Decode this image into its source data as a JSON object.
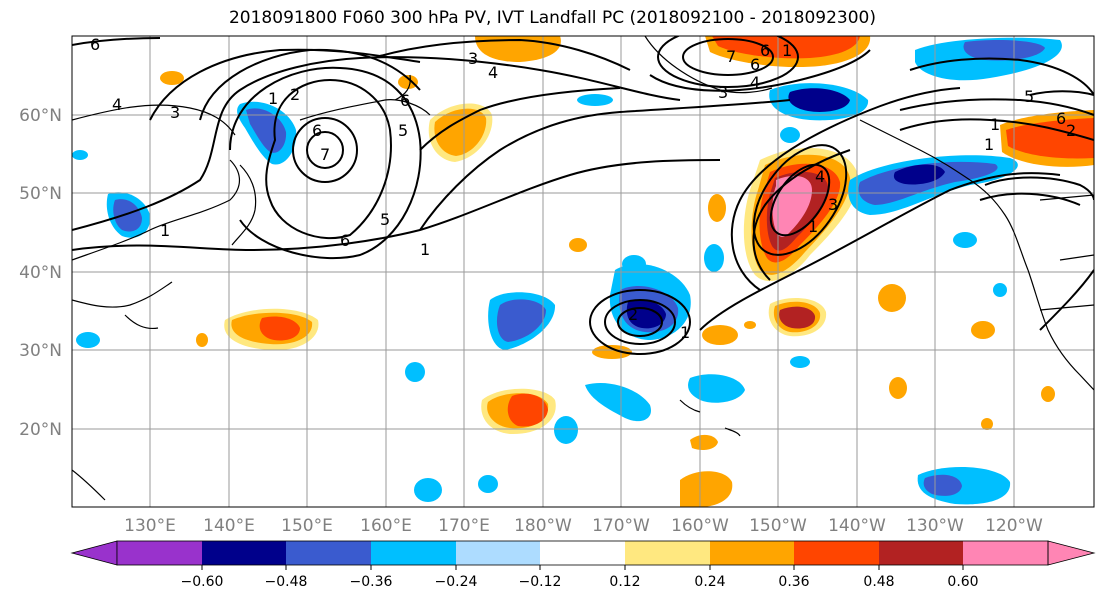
{
  "title": "2018091800 F060 300 hPa PV, IVT Landfall PC (2018092100 - 2018092300)",
  "lat_labels": [
    "60°N",
    "50°N",
    "40°N",
    "30°N",
    "20°N"
  ],
  "lon_labels": [
    "130°E",
    "140°E",
    "150°E",
    "160°E",
    "170°E",
    "180°W",
    "170°W",
    "160°W",
    "150°W",
    "140°W",
    "130°W",
    "120°W"
  ],
  "colorbar": {
    "colors": [
      "#9932CC",
      "#00008B",
      "#3A5BCF",
      "#00BFFF",
      "#ADDCFF",
      "#FFFFFF",
      "#FFE880",
      "#FFA500",
      "#FF4500",
      "#B22222",
      "#FF85B4"
    ],
    "tick_labels": [
      "−0.60",
      "−0.48",
      "−0.36",
      "−0.24",
      "−0.12",
      "0.12",
      "0.24",
      "0.36",
      "0.48",
      "0.60"
    ]
  },
  "contour_labels": [
    "6",
    "3",
    "4",
    "4",
    "6",
    "2",
    "1",
    "3",
    "6",
    "7",
    "5",
    "6",
    "1",
    "1",
    "5",
    "6",
    "1",
    "7",
    "6",
    "4",
    "3",
    "4",
    "1",
    "3",
    "2",
    "1",
    "5",
    "6",
    "1",
    "1",
    "2"
  ],
  "colors": {
    "pink": "#FF85B4",
    "darkred": "#B22222",
    "red": "#FF4500",
    "orange": "#FFA500",
    "lightyellow": "#FFE880",
    "navy": "#00008B",
    "blue": "#3A5BCF",
    "cyan": "#00BFFF",
    "lightblue": "#ADDCFF"
  }
}
